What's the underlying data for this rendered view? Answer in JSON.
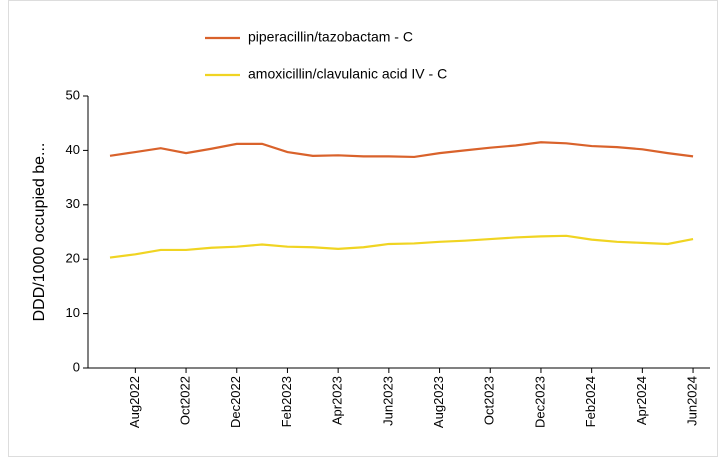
{
  "chart_data": {
    "type": "line",
    "y_label": "DDD/1000  occupied  be...",
    "categories": [
      null,
      "Aug2022",
      null,
      "Oct2022",
      null,
      "Dec2022",
      null,
      "Feb2023",
      null,
      "Apr2023",
      null,
      "Jun2023",
      null,
      "Aug2023",
      null,
      "Oct2023",
      null,
      "Dec2023",
      null,
      "Feb2024",
      null,
      "Apr2024",
      null,
      "Jun2024"
    ],
    "series": [
      {
        "name": "piperacillin/tazobactam - C",
        "color": "#d9622b",
        "values": [
          39.0,
          39.7,
          40.4,
          39.5,
          40.3,
          41.2,
          41.2,
          39.7,
          39.0,
          39.1,
          38.9,
          38.9,
          38.8,
          39.5,
          40.0,
          40.5,
          40.9,
          41.5,
          41.3,
          40.8,
          40.6,
          40.2,
          39.5,
          38.9
        ]
      },
      {
        "name": "amoxicillin/clavulanic acid IV - C",
        "color": "#f0d422",
        "values": [
          20.3,
          20.9,
          21.7,
          21.7,
          22.1,
          22.3,
          22.7,
          22.3,
          22.2,
          21.9,
          22.2,
          22.8,
          22.9,
          23.2,
          23.4,
          23.7,
          24.0,
          24.2,
          24.3,
          23.6,
          23.2,
          23.0,
          22.8,
          23.7
        ]
      }
    ],
    "ylim": [
      0,
      50
    ],
    "yticks": [
      0,
      10,
      20,
      30,
      40,
      50
    ]
  }
}
